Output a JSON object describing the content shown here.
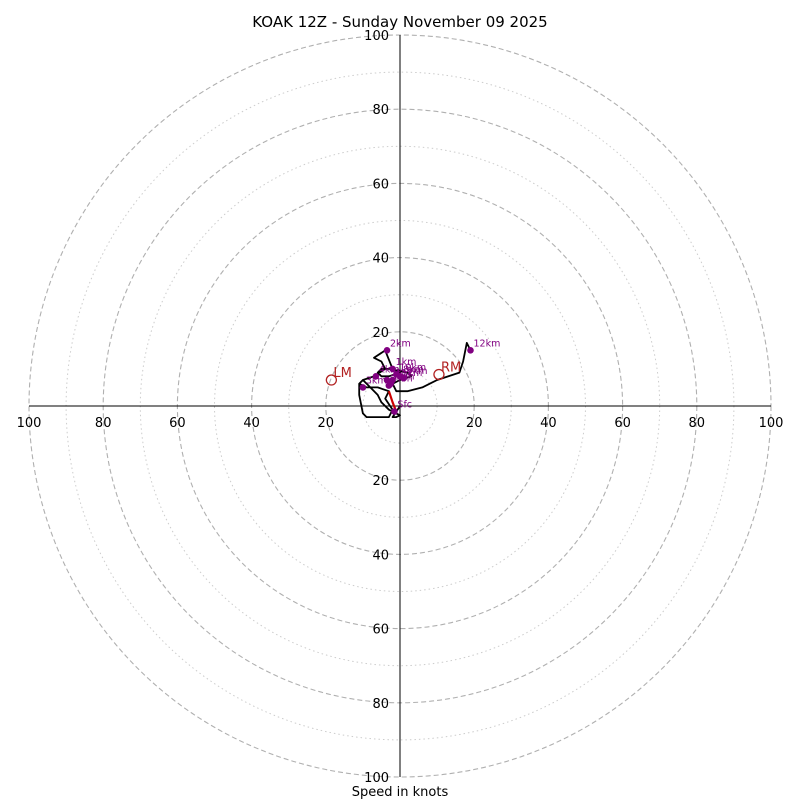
{
  "chart_data": {
    "type": "hodograph",
    "title": "KOAK 12Z - Sunday November 09 2025",
    "xlabel": "Speed in knots",
    "ring_max": 100,
    "major_rings": [
      20,
      40,
      60,
      80,
      100
    ],
    "minor_rings": [
      10,
      30,
      50,
      70,
      90
    ],
    "tick_labels": [
      "20",
      "40",
      "60",
      "80",
      "100"
    ],
    "hodograph_line": [
      [
        0,
        0
      ],
      [
        -1,
        -1.5
      ],
      [
        -2,
        -3
      ],
      [
        -1,
        -3
      ],
      [
        0,
        -2.5
      ],
      [
        -3,
        -1
      ],
      [
        -5,
        1
      ],
      [
        -6,
        3
      ],
      [
        -8,
        5
      ],
      [
        -10,
        7
      ],
      [
        -11,
        6
      ],
      [
        -11,
        3
      ],
      [
        -10,
        -2
      ],
      [
        -9,
        -3
      ],
      [
        -3,
        -3
      ],
      [
        -2,
        -1
      ],
      [
        -4,
        2
      ],
      [
        -3,
        4
      ],
      [
        -6,
        5
      ],
      [
        -9,
        5
      ],
      [
        -11,
        6
      ],
      [
        -10,
        7
      ],
      [
        -7,
        8
      ],
      [
        -4,
        10
      ],
      [
        -5,
        12
      ],
      [
        -7,
        13
      ],
      [
        -4,
        15
      ],
      [
        -2,
        10
      ],
      [
        0,
        9
      ],
      [
        -3,
        8
      ],
      [
        -5,
        8
      ],
      [
        -6,
        9
      ],
      [
        -5,
        10
      ],
      [
        -3,
        10
      ],
      [
        2,
        9
      ],
      [
        3,
        8
      ],
      [
        0,
        7
      ],
      [
        -2,
        6
      ],
      [
        -1,
        4
      ],
      [
        2,
        4
      ],
      [
        6,
        5
      ],
      [
        10,
        7
      ],
      [
        16,
        9
      ],
      [
        17,
        12
      ],
      [
        18,
        17
      ],
      [
        19,
        15
      ]
    ],
    "low_level_segment": [
      [
        -1,
        -1.5
      ],
      [
        -2,
        1
      ],
      [
        -3,
        4
      ]
    ],
    "height_points": [
      {
        "label": "Sfc",
        "u": -1.5,
        "v": -1.5
      },
      {
        "label": "1km",
        "u": -2,
        "v": 10
      },
      {
        "label": "2km",
        "u": -3.5,
        "v": 15
      },
      {
        "label": "3km",
        "u": -10,
        "v": 5
      },
      {
        "label": "4km",
        "u": -6.5,
        "v": 8
      },
      {
        "label": "5km",
        "u": -3.5,
        "v": 7
      },
      {
        "label": "6km",
        "u": -2.5,
        "v": 6
      },
      {
        "label": "7km",
        "u": -3,
        "v": 5.5
      },
      {
        "label": "8km",
        "u": 0,
        "v": 8
      },
      {
        "label": "9km",
        "u": 1,
        "v": 7.5
      },
      {
        "label": "10km",
        "u": -1,
        "v": 8.5
      },
      {
        "label": "11km",
        "u": -2,
        "v": 7
      },
      {
        "label": "12km",
        "u": 19,
        "v": 15
      }
    ],
    "storm_motion": [
      {
        "label": "LM",
        "u": -18.5,
        "v": 7
      },
      {
        "label": "RM",
        "u": 10.5,
        "v": 8.5
      }
    ],
    "colors": {
      "line": "#000000",
      "low_level": "#cc0000",
      "points": "#800080",
      "storm_motion": "#b22222",
      "ring": "#b0b0b0",
      "minor_ring": "#cccccc",
      "axis": "#000000"
    }
  }
}
